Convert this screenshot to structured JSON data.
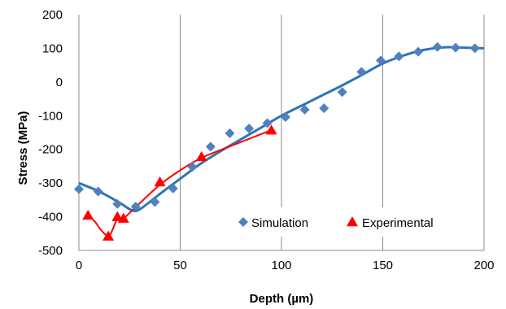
{
  "chart_data": {
    "type": "scatter",
    "xlabel": "Depth (µm)",
    "ylabel": "Stress (MPa)",
    "xlim": [
      0,
      200
    ],
    "ylim": [
      -500,
      200
    ],
    "x_ticks": [
      0,
      50,
      100,
      150,
      200
    ],
    "y_ticks": [
      -500,
      -400,
      -300,
      -200,
      -100,
      0,
      100,
      200
    ],
    "x_tick_labels": [
      "0",
      "50",
      "100",
      "150",
      "200"
    ],
    "y_tick_labels": [
      "-500",
      "-400",
      "-300",
      "-200",
      "-100",
      "0",
      "100",
      "200"
    ],
    "grid": "vertical",
    "legend_position": "bottom-right",
    "series": [
      {
        "name": "Simulation",
        "marker": "diamond",
        "color": "#4F81BD",
        "points": [
          [
            0,
            -318
          ],
          [
            9.5,
            -325
          ],
          [
            19,
            -362
          ],
          [
            28,
            -370
          ],
          [
            37.5,
            -356
          ],
          [
            46.5,
            -316
          ],
          [
            56,
            -252
          ],
          [
            65,
            -192
          ],
          [
            74.5,
            -152
          ],
          [
            84,
            -138
          ],
          [
            93,
            -122
          ],
          [
            102,
            -104
          ],
          [
            111.5,
            -82
          ],
          [
            121,
            -78
          ],
          [
            130,
            -30
          ],
          [
            139.5,
            30
          ],
          [
            149,
            64
          ],
          [
            158,
            76
          ],
          [
            167.5,
            90
          ],
          [
            177,
            104
          ],
          [
            186,
            102
          ],
          [
            195.5,
            100
          ]
        ]
      },
      {
        "name": "Experimental",
        "marker": "triangle",
        "color": "#FF0000",
        "points": [
          [
            4.5,
            -396
          ],
          [
            14.5,
            -458
          ],
          [
            19,
            -400
          ],
          [
            22,
            -405
          ],
          [
            40,
            -297
          ],
          [
            60.5,
            -222
          ],
          [
            95,
            -143
          ]
        ]
      }
    ],
    "fits": [
      {
        "of": "Simulation",
        "color": "#2E75B6",
        "points": [
          [
            0,
            -300
          ],
          [
            10,
            -325
          ],
          [
            20,
            -358
          ],
          [
            26,
            -380
          ],
          [
            30,
            -378
          ],
          [
            40,
            -332
          ],
          [
            50,
            -287
          ],
          [
            60,
            -243
          ],
          [
            70,
            -205
          ],
          [
            80,
            -170
          ],
          [
            90,
            -135
          ],
          [
            100,
            -100
          ],
          [
            110,
            -70
          ],
          [
            120,
            -40
          ],
          [
            130,
            -10
          ],
          [
            140,
            22
          ],
          [
            150,
            55
          ],
          [
            160,
            78
          ],
          [
            170,
            95
          ],
          [
            180,
            103
          ],
          [
            190,
            102
          ],
          [
            200,
            100
          ]
        ]
      },
      {
        "of": "Experimental",
        "color": "#FF0000",
        "points": [
          [
            4.5,
            -396
          ],
          [
            8,
            -415
          ],
          [
            11,
            -440
          ],
          [
            14.5,
            -458
          ],
          [
            16.5,
            -440
          ],
          [
            19,
            -407
          ],
          [
            22,
            -405
          ],
          [
            30,
            -360
          ],
          [
            40,
            -305
          ],
          [
            50,
            -262
          ],
          [
            60.5,
            -225
          ],
          [
            75,
            -190
          ],
          [
            95,
            -143
          ]
        ]
      }
    ]
  }
}
